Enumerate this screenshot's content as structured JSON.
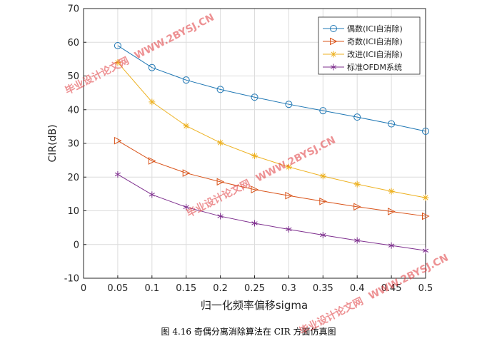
{
  "chart_data": {
    "type": "line",
    "xlabel": "归一化频率偏移sigma",
    "ylabel": "CIR(dB)",
    "xlim": [
      0,
      0.5
    ],
    "ylim": [
      -10,
      70
    ],
    "xticks": [
      "0",
      "0.05",
      "0.1",
      "0.15",
      "0.2",
      "0.25",
      "0.3",
      "0.35",
      "0.4",
      "0.45",
      "0.5"
    ],
    "yticks": [
      "-10",
      "0",
      "10",
      "20",
      "30",
      "40",
      "50",
      "60",
      "70"
    ],
    "grid": true,
    "legend_position": "top-right",
    "x": [
      0.05,
      0.1,
      0.15,
      0.2,
      0.25,
      0.3,
      0.35,
      0.4,
      0.45,
      0.5
    ],
    "series": [
      {
        "name": "偶数(ICI自消除)",
        "color": "#1f77b4",
        "marker": "circle",
        "values": [
          59,
          52.5,
          48.8,
          46,
          43.7,
          41.6,
          39.7,
          37.8,
          35.8,
          33.6
        ]
      },
      {
        "name": "奇数(ICI自消除)",
        "color": "#d95319",
        "marker": "triangle-right",
        "values": [
          30.8,
          24.8,
          21.2,
          18.6,
          16.3,
          14.5,
          12.8,
          11.2,
          9.8,
          8.4
        ]
      },
      {
        "name": "改进(ICI自消除)",
        "color": "#edb120",
        "marker": "star",
        "values": [
          54,
          42.3,
          35.2,
          30.2,
          26.3,
          23,
          20.3,
          17.9,
          15.8,
          13.9
        ]
      },
      {
        "name": "标准OFDM系统",
        "color": "#7e2f8e",
        "marker": "asterisk",
        "values": [
          20.8,
          14.8,
          11.1,
          8.4,
          6.3,
          4.5,
          2.8,
          1.2,
          -0.3,
          -1.8
        ]
      }
    ]
  },
  "caption": "图 4.16  奇偶分离消除算法在 CIR 方面仿真图",
  "watermarks": [
    {
      "text": "毕业设计论文网"
    },
    {
      "text": "WWW.2BYSJ.CN"
    }
  ]
}
